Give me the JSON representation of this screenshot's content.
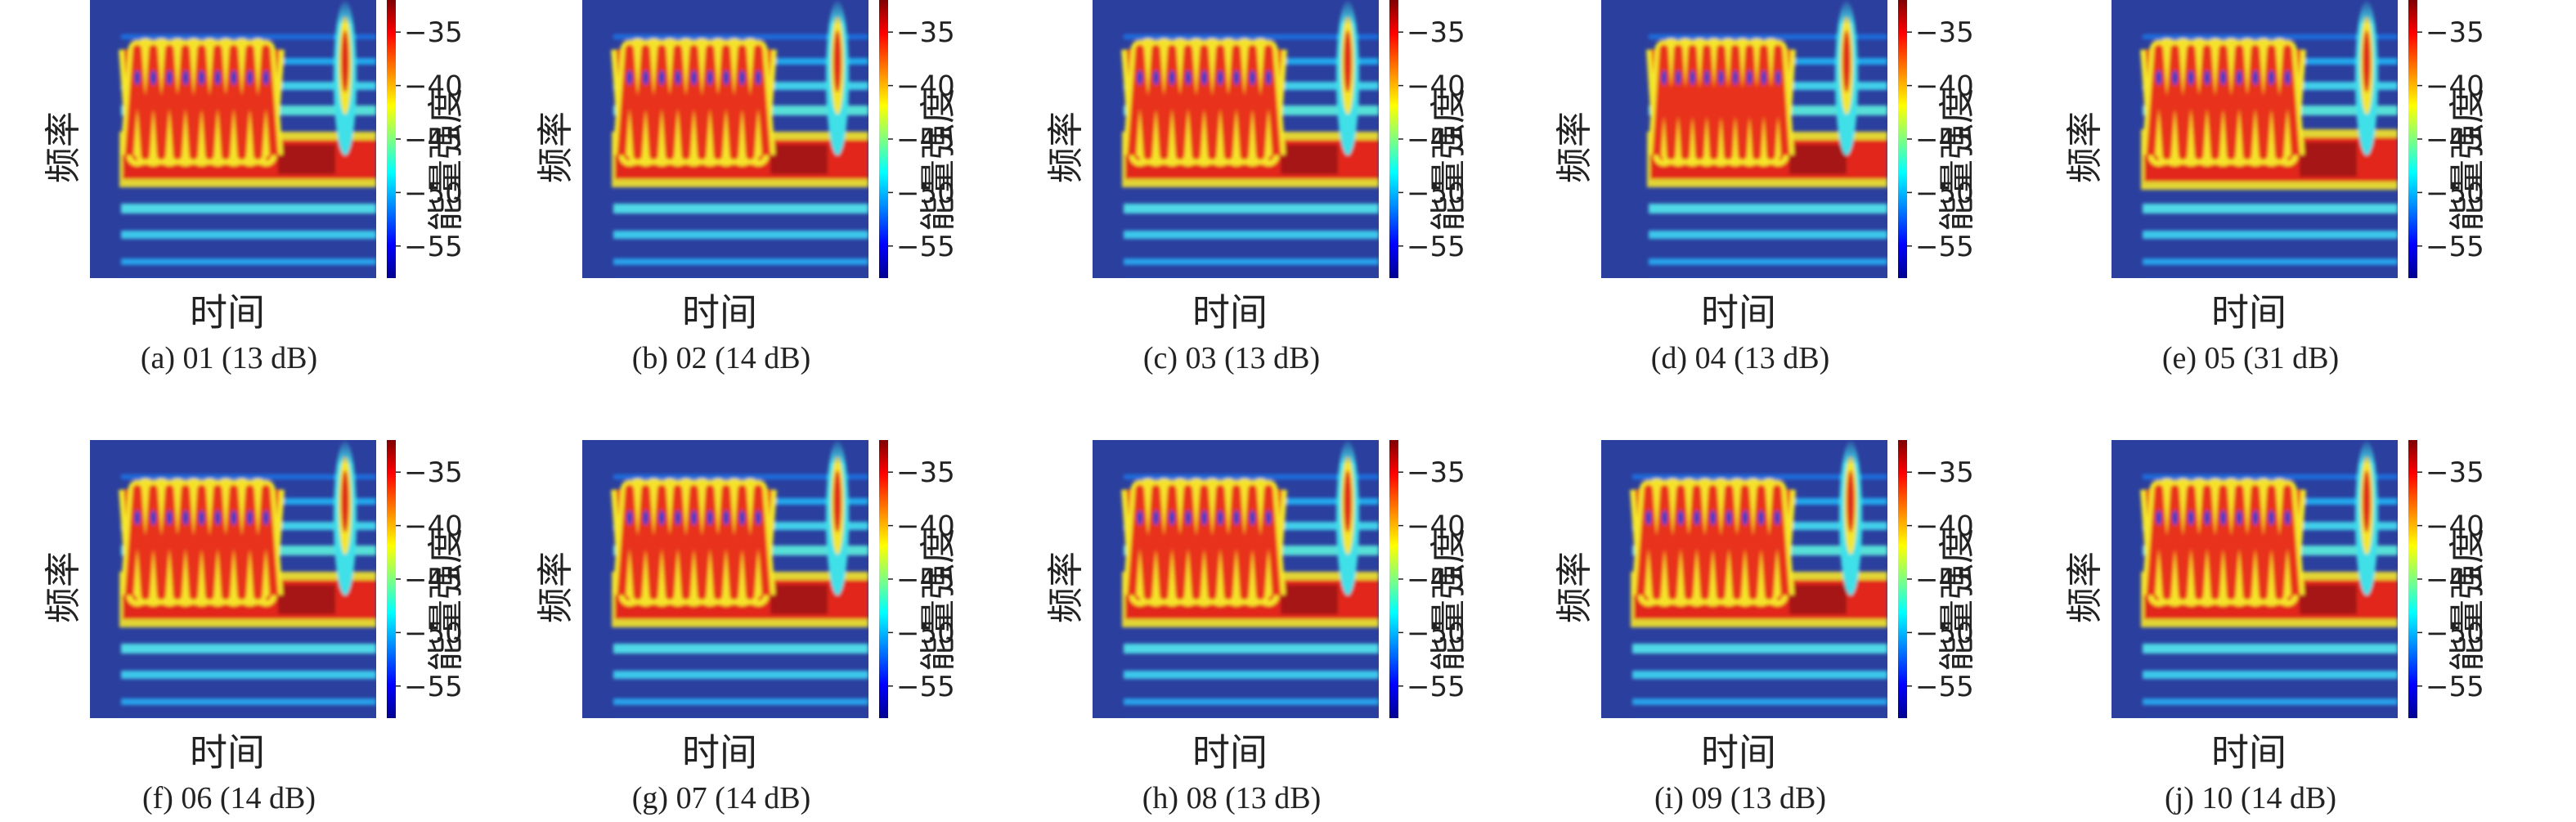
{
  "panel_axis": {
    "xlabel": "时间",
    "ylabel": "频率",
    "colorbar_label": "能量强度",
    "colorbar_ticks": [
      "−35",
      "−40",
      "−45",
      "−50",
      "−55"
    ]
  },
  "chart_data": [
    {
      "type": "heatmap",
      "caption": "(a) 01 (13 dB)",
      "xlabel": "时间",
      "ylabel": "频率",
      "colorbar": {
        "label": "能量强度",
        "ticks": [
          -35,
          -40,
          -45,
          -50,
          -55
        ],
        "range": [
          -58,
          -32
        ]
      }
    },
    {
      "type": "heatmap",
      "caption": "(b) 02 (14 dB)",
      "xlabel": "时间",
      "ylabel": "频率",
      "colorbar": {
        "label": "能量强度",
        "ticks": [
          -35,
          -40,
          -45,
          -50,
          -55
        ],
        "range": [
          -58,
          -32
        ]
      }
    },
    {
      "type": "heatmap",
      "caption": "(c) 03 (13 dB)",
      "xlabel": "时间",
      "ylabel": "频率",
      "colorbar": {
        "label": "能量强度",
        "ticks": [
          -35,
          -40,
          -45,
          -50,
          -55
        ],
        "range": [
          -58,
          -32
        ]
      }
    },
    {
      "type": "heatmap",
      "caption": "(d) 04 (13 dB)",
      "xlabel": "时间",
      "ylabel": "频率",
      "colorbar": {
        "label": "能量强度",
        "ticks": [
          -35,
          -40,
          -45,
          -50,
          -55
        ],
        "range": [
          -58,
          -32
        ]
      }
    },
    {
      "type": "heatmap",
      "caption": "(e) 05 (31 dB)",
      "xlabel": "时间",
      "ylabel": "频率",
      "colorbar": {
        "label": "能量强度",
        "ticks": [
          -35,
          -40,
          -45,
          -50,
          -55
        ],
        "range": [
          -58,
          -32
        ]
      }
    },
    {
      "type": "heatmap",
      "caption": "(f) 06 (14 dB)",
      "xlabel": "时间",
      "ylabel": "频率",
      "colorbar": {
        "label": "能量强度",
        "ticks": [
          -35,
          -40,
          -45,
          -50,
          -55
        ],
        "range": [
          -58,
          -32
        ]
      }
    },
    {
      "type": "heatmap",
      "caption": "(g) 07 (14 dB)",
      "xlabel": "时间",
      "ylabel": "频率",
      "colorbar": {
        "label": "能量强度",
        "ticks": [
          -35,
          -40,
          -45,
          -50,
          -55
        ],
        "range": [
          -58,
          -32
        ]
      }
    },
    {
      "type": "heatmap",
      "caption": "(h) 08 (13 dB)",
      "xlabel": "时间",
      "ylabel": "频率",
      "colorbar": {
        "label": "能量强度",
        "ticks": [
          -35,
          -40,
          -45,
          -50,
          -55
        ],
        "range": [
          -58,
          -32
        ]
      }
    },
    {
      "type": "heatmap",
      "caption": "(i) 09 (13 dB)",
      "xlabel": "时间",
      "ylabel": "频率",
      "colorbar": {
        "label": "能量强度",
        "ticks": [
          -35,
          -40,
          -45,
          -50,
          -55
        ],
        "range": [
          -58,
          -32
        ]
      }
    },
    {
      "type": "heatmap",
      "caption": "(j) 10 (14 dB)",
      "xlabel": "时间",
      "ylabel": "频率",
      "colorbar": {
        "label": "能量强度",
        "ticks": [
          -35,
          -40,
          -45,
          -50,
          -55
        ],
        "range": [
          -58,
          -32
        ]
      }
    }
  ],
  "colors": {
    "background": "#ffffff",
    "heatmap_floor": "#2b3f9e",
    "jet_stops": [
      "#00008f",
      "#0000ff",
      "#00ffff",
      "#ffff00",
      "#ff0000",
      "#800000"
    ]
  }
}
